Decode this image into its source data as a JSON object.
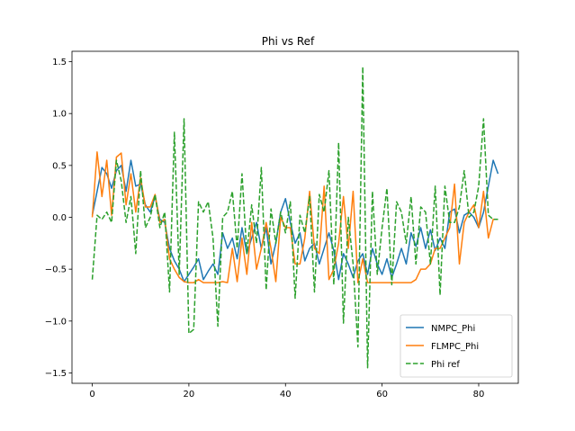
{
  "chart_data": {
    "type": "line",
    "title": "Phi vs Ref",
    "xlabel": "",
    "ylabel": "",
    "xlim": [
      -4.2,
      88.2
    ],
    "ylim": [
      -1.6,
      1.6
    ],
    "xticks": [
      0,
      20,
      40,
      60,
      80
    ],
    "yticks": [
      -1.5,
      -1.0,
      -0.5,
      0.0,
      0.5,
      1.0,
      1.5
    ],
    "ytick_labels": [
      "−1.5",
      "−1.0",
      "−0.5",
      "0.0",
      "0.5",
      "1.0",
      "1.5"
    ],
    "grid": false,
    "legend_position": "lower-right",
    "x": [
      0,
      1,
      2,
      3,
      4,
      5,
      6,
      7,
      8,
      9,
      10,
      11,
      12,
      13,
      14,
      15,
      16,
      17,
      18,
      19,
      20,
      21,
      22,
      23,
      24,
      25,
      26,
      27,
      28,
      29,
      30,
      31,
      32,
      33,
      34,
      35,
      36,
      37,
      38,
      39,
      40,
      41,
      42,
      43,
      44,
      45,
      46,
      47,
      48,
      49,
      50,
      51,
      52,
      53,
      54,
      55,
      56,
      57,
      58,
      59,
      60,
      61,
      62,
      63,
      64,
      65,
      66,
      67,
      68,
      69,
      70,
      71,
      72,
      73,
      74,
      75,
      76,
      77,
      78,
      79,
      80,
      81,
      82,
      83,
      84
    ],
    "series": [
      {
        "name": "NMPC_Phi",
        "color": "#1f77b4",
        "style": "solid",
        "values": [
          0.02,
          0.25,
          0.48,
          0.42,
          0.28,
          0.45,
          0.5,
          0.25,
          0.55,
          0.3,
          0.32,
          0.12,
          0.05,
          0.2,
          -0.02,
          -0.05,
          -0.3,
          -0.42,
          -0.5,
          -0.62,
          -0.55,
          -0.48,
          -0.4,
          -0.6,
          -0.52,
          -0.45,
          -0.55,
          -0.15,
          -0.3,
          -0.2,
          -0.4,
          -0.1,
          -0.35,
          -0.2,
          -0.05,
          -0.3,
          -0.1,
          -0.45,
          -0.25,
          0.05,
          0.18,
          -0.05,
          -0.25,
          -0.15,
          -0.42,
          -0.3,
          -0.25,
          -0.45,
          -0.3,
          -0.15,
          -0.32,
          -0.6,
          -0.35,
          -0.45,
          -0.58,
          -0.42,
          -0.35,
          -0.55,
          -0.3,
          -0.45,
          -0.55,
          -0.4,
          -0.58,
          -0.45,
          -0.3,
          -0.45,
          -0.15,
          -0.28,
          -0.1,
          -0.3,
          -0.12,
          -0.32,
          -0.2,
          -0.3,
          0.05,
          0.08,
          -0.15,
          0.02,
          0.05,
          0.0,
          -0.1,
          0.05,
          0.3,
          0.55,
          0.42
        ]
      },
      {
        "name": "FLMPC_Phi",
        "color": "#ff7f0e",
        "style": "solid",
        "values": [
          0.0,
          0.63,
          0.2,
          0.55,
          0.02,
          0.58,
          0.62,
          0.12,
          0.42,
          0.05,
          0.38,
          0.1,
          0.1,
          0.22,
          -0.05,
          -0.02,
          -0.4,
          -0.5,
          -0.58,
          -0.62,
          -0.63,
          -0.63,
          -0.6,
          -0.63,
          -0.63,
          -0.63,
          -0.63,
          -0.62,
          -0.63,
          -0.3,
          -0.62,
          -0.2,
          -0.55,
          -0.05,
          -0.5,
          -0.3,
          -0.05,
          -0.3,
          -0.62,
          0.0,
          -0.1,
          -0.1,
          -0.45,
          -0.45,
          -0.2,
          0.25,
          -0.3,
          -0.35,
          0.3,
          -0.6,
          -0.5,
          -0.25,
          0.2,
          -0.3,
          0.25,
          -0.63,
          -0.4,
          -0.63,
          -0.63,
          -0.63,
          -0.63,
          -0.63,
          -0.63,
          -0.63,
          -0.63,
          -0.63,
          -0.63,
          -0.6,
          -0.5,
          -0.5,
          -0.45,
          -0.3,
          -0.3,
          -0.2,
          -0.1,
          0.32,
          -0.45,
          -0.05,
          0.05,
          0.12,
          -0.1,
          0.25,
          -0.2,
          -0.02,
          -0.02
        ]
      },
      {
        "name": "Phi ref",
        "color": "#2ca02c",
        "style": "dashed",
        "values": [
          -0.6,
          0.02,
          -0.02,
          0.05,
          -0.05,
          0.55,
          0.35,
          -0.05,
          0.2,
          -0.35,
          0.45,
          -0.1,
          0.0,
          0.22,
          -0.1,
          0.05,
          -0.72,
          0.82,
          -0.55,
          0.95,
          -1.12,
          -1.08,
          0.15,
          0.05,
          0.15,
          -0.2,
          -1.05,
          0.0,
          0.05,
          0.25,
          -0.3,
          0.42,
          -0.35,
          0.12,
          -0.25,
          0.48,
          -0.7,
          0.08,
          -0.25,
          0.05,
          -0.15,
          0.15,
          -0.78,
          0.02,
          -0.15,
          0.2,
          -0.72,
          0.22,
          0.05,
          0.45,
          -0.65,
          0.72,
          -1.02,
          0.0,
          -0.45,
          -1.25,
          1.45,
          -1.45,
          0.25,
          -0.55,
          -0.1,
          0.28,
          -0.65,
          0.15,
          0.05,
          -0.25,
          0.2,
          -0.45,
          0.1,
          0.05,
          -0.45,
          0.3,
          -0.75,
          0.3,
          -0.05,
          -0.05,
          0.1,
          0.45,
          0.0,
          0.05,
          0.3,
          0.95,
          0.02,
          -0.02,
          -0.02
        ]
      }
    ]
  }
}
